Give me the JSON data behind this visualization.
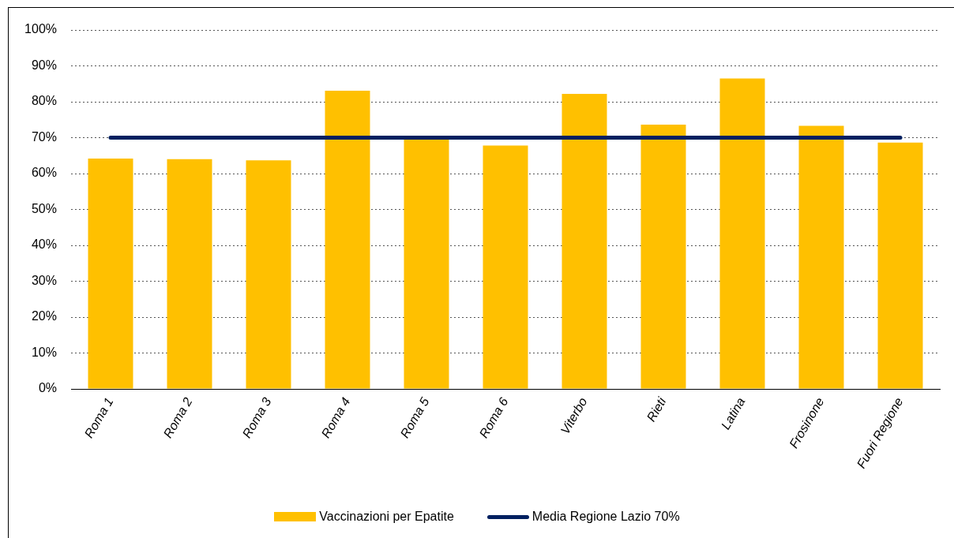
{
  "chart_data": {
    "type": "bar",
    "categories": [
      "Roma 1",
      "Roma 2",
      "Roma 3",
      "Roma 4",
      "Roma 5",
      "Roma 6",
      "Viterbo",
      "Rieti",
      "Latina",
      "Frosinone",
      "Fuori Regione"
    ],
    "series": [
      {
        "name": "Vaccinazioni per Epatite",
        "color": "#ffc000",
        "values": [
          64.2,
          64.0,
          63.7,
          83.1,
          69.5,
          67.8,
          82.2,
          73.6,
          86.5,
          73.3,
          68.6
        ]
      },
      {
        "name": "Media Regione Lazio 70%",
        "type": "line",
        "color": "#002060",
        "marker": "none",
        "values": [
          70,
          70,
          70,
          70,
          70,
          70,
          70,
          70,
          70,
          70,
          70
        ]
      }
    ],
    "ylim": [
      0,
      100
    ],
    "yticks": [
      {
        "value": 0,
        "label": "0%"
      },
      {
        "value": 10,
        "label": "10%"
      },
      {
        "value": 20,
        "label": "20%"
      },
      {
        "value": 30,
        "label": "30%"
      },
      {
        "value": 40,
        "label": "40%"
      },
      {
        "value": 50,
        "label": "50%"
      },
      {
        "value": 60,
        "label": "60%"
      },
      {
        "value": 70,
        "label": "70%"
      },
      {
        "value": 80,
        "label": "80%"
      },
      {
        "value": 90,
        "label": "90%"
      },
      {
        "value": 100,
        "label": "100%"
      }
    ],
    "grid": "y",
    "legend": "bottom"
  }
}
